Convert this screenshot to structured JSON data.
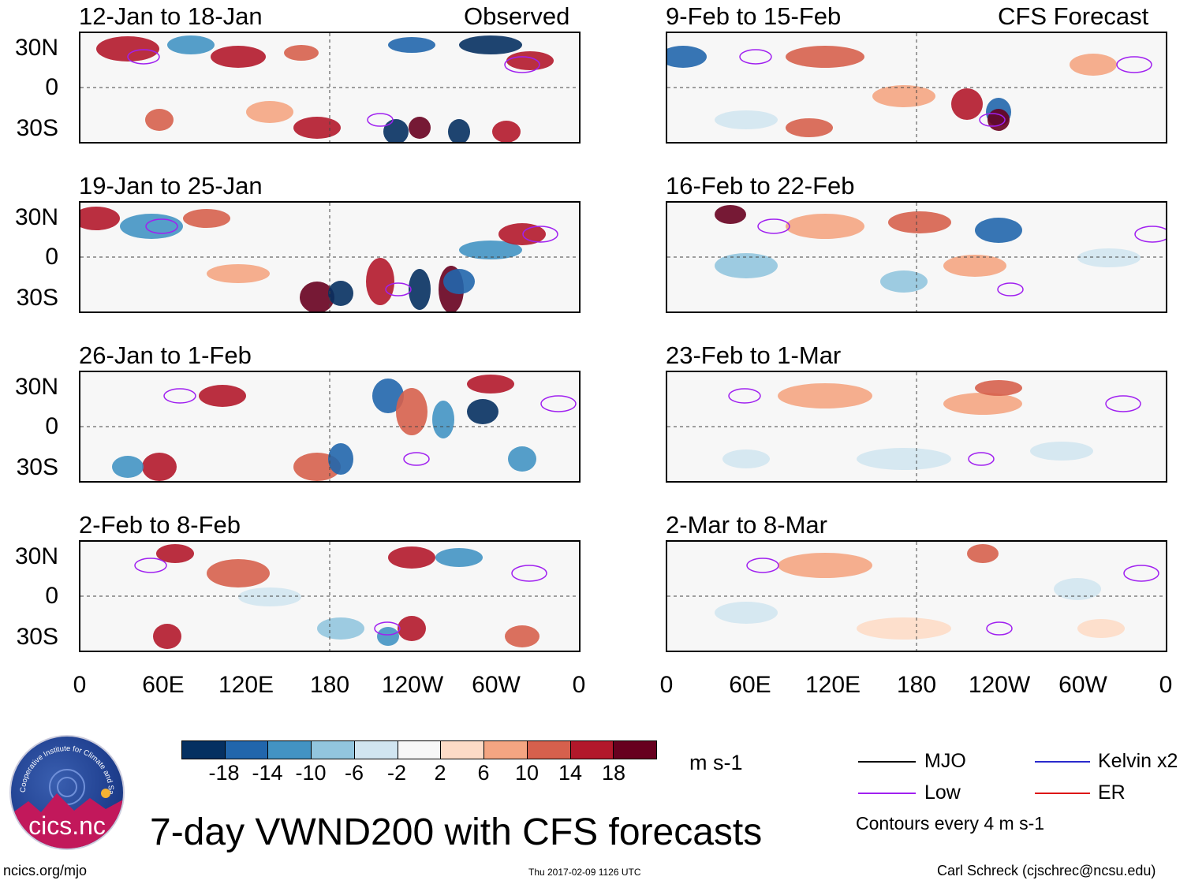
{
  "title": "7-day VWND200 with CFS forecasts",
  "observed_label": "Observed",
  "forecast_label": "CFS Forecast",
  "observed_panels": [
    "12-Jan to 18-Jan",
    "19-Jan to 25-Jan",
    "26-Jan to 1-Feb",
    "2-Feb to 8-Feb"
  ],
  "forecast_panels": [
    "9-Feb to 15-Feb",
    "16-Feb to 22-Feb",
    "23-Feb to 1-Mar",
    "2-Mar to 8-Mar"
  ],
  "lat_labels": [
    "30N",
    "0",
    "30S"
  ],
  "lon_labels": [
    "0",
    "60E",
    "120E",
    "180",
    "120W",
    "60W",
    "0"
  ],
  "colorbar": {
    "ticks": [
      "-18",
      "-14",
      "-10",
      "-6",
      "-2",
      "2",
      "6",
      "10",
      "14",
      "18"
    ],
    "colors": [
      "#053061",
      "#2166ac",
      "#4393c3",
      "#92c5de",
      "#d1e5f0",
      "#f7f7f7",
      "#fddbc7",
      "#f4a582",
      "#d6604d",
      "#b2182b",
      "#67001f"
    ],
    "units": "m s-1"
  },
  "legend": {
    "items": [
      {
        "label": "MJO",
        "color": "#000000"
      },
      {
        "label": "Kelvin x2",
        "color": "#2a2acc"
      },
      {
        "label": "Low",
        "color": "#a020f0"
      },
      {
        "label": "ER",
        "color": "#dd1111"
      }
    ],
    "note": "Contours every 4 m s-1"
  },
  "logo_text": "cics.nc",
  "logo_ring_text": "Cooperative Institute for Climate and Satellites",
  "footer": {
    "left": "ncics.org/mjo",
    "center": "Thu 2017-02-09 1126 UTC",
    "right": "Carl Schreck (cjschrec@ncsu.edu)"
  }
}
